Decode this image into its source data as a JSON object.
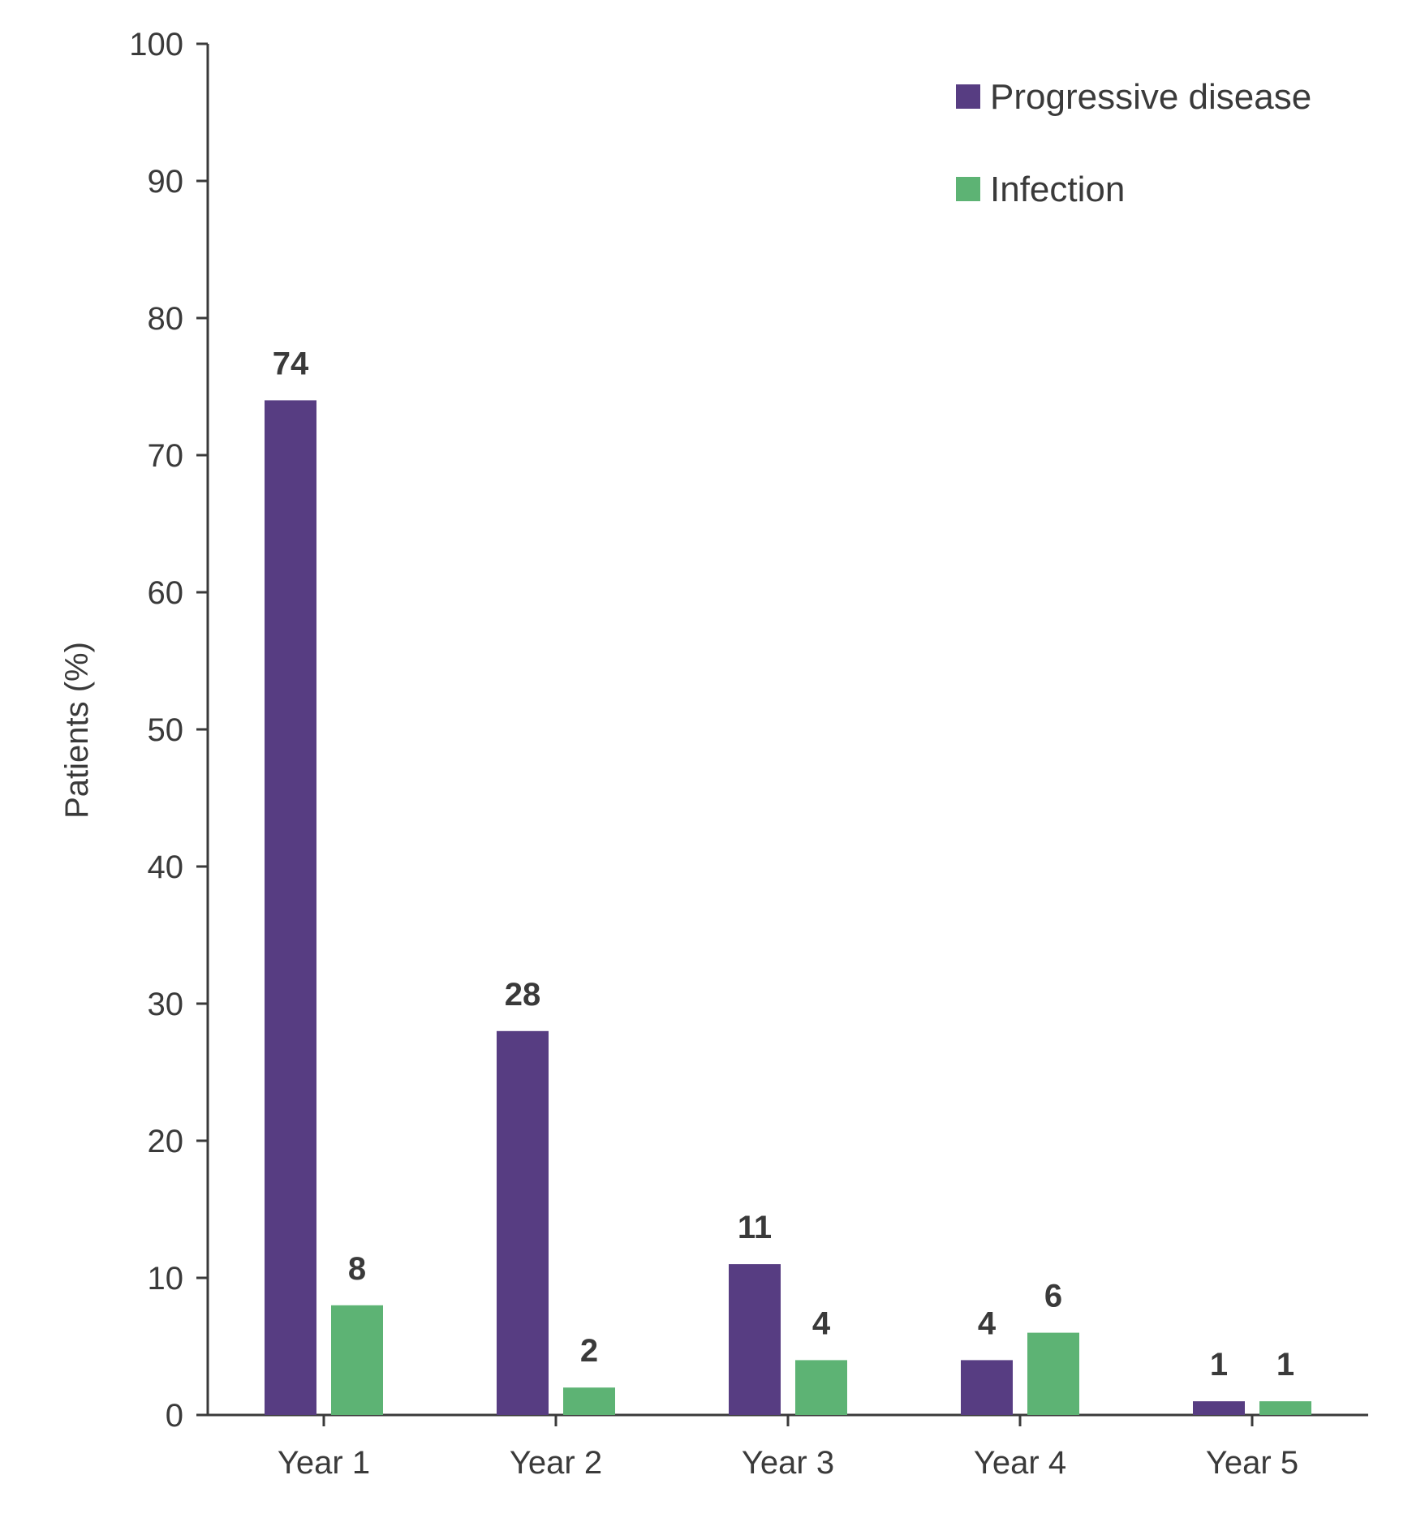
{
  "chart_data": {
    "type": "bar",
    "categories": [
      "Year 1",
      "Year 2",
      "Year 3",
      "Year 4",
      "Year 5"
    ],
    "series": [
      {
        "name": "Progressive disease",
        "color": "#573d82",
        "values": [
          74,
          28,
          11,
          4,
          1
        ]
      },
      {
        "name": "Infection",
        "color": "#5db374",
        "values": [
          8,
          2,
          4,
          6,
          1
        ]
      }
    ],
    "ylabel": "Patients (%)",
    "ylim": [
      0,
      100
    ],
    "yticks": [
      0,
      10,
      20,
      30,
      40,
      50,
      60,
      70,
      80,
      90,
      100
    ],
    "grid": false,
    "legend_position": "top-right",
    "data_labels": true
  }
}
